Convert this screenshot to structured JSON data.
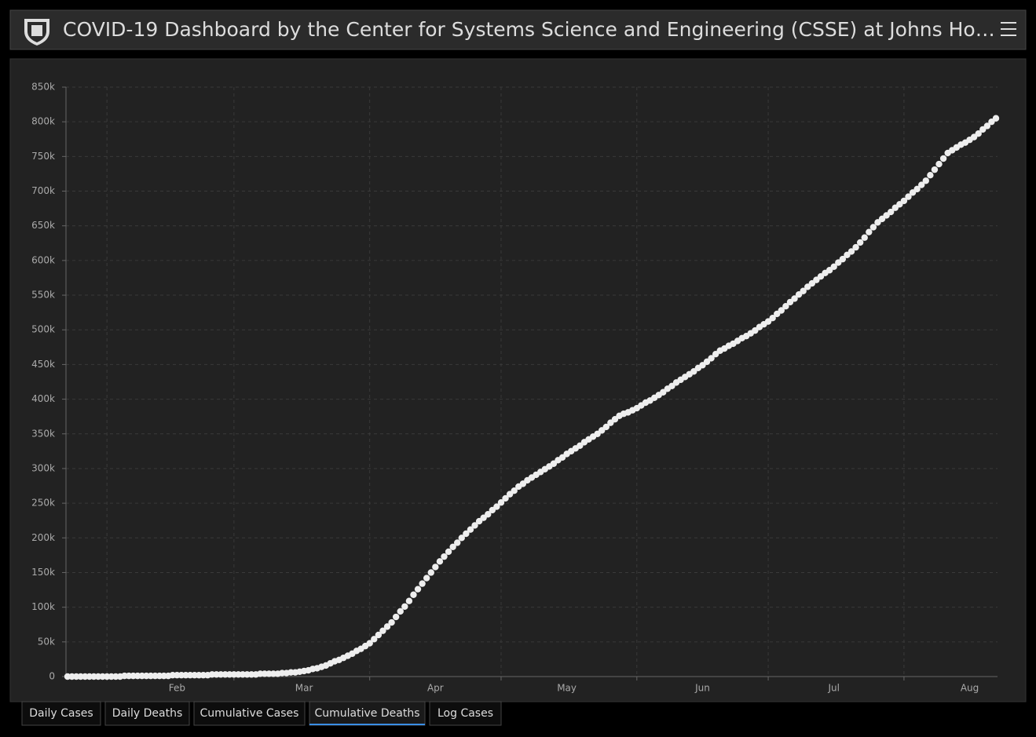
{
  "header": {
    "title": "COVID-19 Dashboard by the Center for Systems Science and Engineering (CSSE) at Johns Ho…"
  },
  "tabs": [
    "Daily Cases",
    "Daily Deaths",
    "Cumulative Cases",
    "Cumulative Deaths",
    "Log Cases"
  ],
  "chart_data": {
    "type": "scatter",
    "color": "#eeeeee",
    "grid": true,
    "ylim": [
      0,
      850000
    ],
    "yticks": [
      0,
      {
        "value": 50000,
        "label": "50k"
      },
      {
        "value": 100000,
        "label": "100k"
      },
      {
        "value": 150000,
        "label": "150k"
      },
      {
        "value": 200000,
        "label": "200k"
      },
      {
        "value": 250000,
        "label": "250k"
      },
      {
        "value": 300000,
        "label": "300k"
      },
      {
        "value": 350000,
        "label": "350k"
      },
      {
        "value": 400000,
        "label": "400k"
      },
      {
        "value": 450000,
        "label": "450k"
      },
      {
        "value": 500000,
        "label": "500k"
      },
      {
        "value": 550000,
        "label": "550k"
      },
      {
        "value": 600000,
        "label": "600k"
      },
      {
        "value": 650000,
        "label": "650k"
      },
      {
        "value": 700000,
        "label": "700k"
      },
      {
        "value": 750000,
        "label": "750k"
      },
      {
        "value": 800000,
        "label": "800k"
      },
      {
        "value": 850000,
        "label": "850k"
      }
    ],
    "categories": [
      null,
      null,
      null,
      null,
      null,
      null,
      null,
      null,
      null,
      null,
      null,
      null,
      null,
      null,
      null,
      null,
      null,
      null,
      null,
      null,
      null,
      null,
      null,
      null,
      null,
      "Feb",
      null,
      null,
      null,
      null,
      null,
      null,
      null,
      null,
      null,
      null,
      null,
      null,
      null,
      null,
      null,
      null,
      null,
      null,
      null,
      null,
      null,
      null,
      null,
      null,
      null,
      null,
      null,
      null,
      "Mar",
      null,
      null,
      null,
      null,
      null,
      null,
      null,
      null,
      null,
      null,
      null,
      null,
      null,
      null,
      null,
      null,
      null,
      null,
      null,
      null,
      null,
      null,
      null,
      null,
      null,
      null,
      null,
      null,
      null,
      "Apr",
      null,
      null,
      null,
      null,
      null,
      null,
      null,
      null,
      null,
      null,
      null,
      null,
      null,
      null,
      null,
      null,
      null,
      null,
      null,
      null,
      null,
      null,
      null,
      null,
      null,
      null,
      null,
      null,
      null,
      "May",
      null,
      null,
      null,
      null,
      null,
      null,
      null,
      null,
      null,
      null,
      null,
      null,
      null,
      null,
      null,
      null,
      null,
      null,
      null,
      null,
      null,
      null,
      null,
      null,
      null,
      null,
      null,
      null,
      null,
      null,
      "Jun",
      null,
      null,
      null,
      null,
      null,
      null,
      null,
      null,
      null,
      null,
      null,
      null,
      null,
      null,
      null,
      null,
      null,
      null,
      null,
      null,
      null,
      null,
      null,
      null,
      null,
      null,
      null,
      null,
      null,
      "Jul",
      null,
      null,
      null,
      null,
      null,
      null,
      null,
      null,
      null,
      null,
      null,
      null,
      null,
      null,
      null,
      null,
      null,
      null,
      null,
      null,
      null,
      null,
      null,
      null,
      null,
      null,
      null,
      null,
      null,
      null,
      "Aug",
      null,
      null,
      null,
      null,
      null,
      null
    ],
    "values": [
      0,
      0,
      0,
      0,
      0,
      0,
      0,
      0,
      0,
      0,
      0,
      0,
      0,
      1000,
      1000,
      1000,
      1000,
      1000,
      1000,
      1000,
      1000,
      1000,
      1000,
      1000,
      2000,
      2000,
      2000,
      2000,
      2000,
      2000,
      2000,
      2000,
      2000,
      3000,
      3000,
      3000,
      3000,
      3000,
      3000,
      3000,
      3000,
      3000,
      3000,
      3000,
      4000,
      4000,
      4000,
      4000,
      4000,
      5000,
      5000,
      6000,
      6000,
      7000,
      8000,
      9000,
      11000,
      12000,
      14000,
      16000,
      19000,
      22000,
      24000,
      27000,
      30000,
      33000,
      37000,
      40000,
      44000,
      48000,
      54000,
      60000,
      66000,
      72000,
      78000,
      86000,
      94000,
      101000,
      109000,
      118000,
      126000,
      134000,
      142000,
      150000,
      158000,
      166000,
      173000,
      180000,
      187000,
      193000,
      200000,
      206000,
      212000,
      218000,
      224000,
      229000,
      234000,
      240000,
      245000,
      251000,
      257000,
      263000,
      268000,
      274000,
      278000,
      283000,
      287000,
      291000,
      295000,
      299000,
      303000,
      307000,
      312000,
      316000,
      321000,
      325000,
      329000,
      333000,
      338000,
      342000,
      346000,
      350000,
      355000,
      360000,
      366000,
      371000,
      376000,
      379000,
      381000,
      384000,
      387000,
      391000,
      395000,
      398000,
      402000,
      406000,
      410000,
      415000,
      419000,
      424000,
      428000,
      432000,
      436000,
      440000,
      445000,
      449000,
      454000,
      459000,
      465000,
      470000,
      473000,
      477000,
      480000,
      484000,
      488000,
      491000,
      495000,
      499000,
      504000,
      508000,
      512000,
      517000,
      523000,
      528000,
      534000,
      540000,
      545000,
      551000,
      556000,
      562000,
      567000,
      572000,
      577000,
      582000,
      586000,
      591000,
      597000,
      602000,
      608000,
      613000,
      619000,
      626000,
      633000,
      641000,
      648000,
      655000,
      660000,
      665000,
      670000,
      676000,
      681000,
      686000,
      692000,
      698000,
      703000,
      709000,
      715000,
      723000,
      731000,
      739000,
      747000,
      755000,
      759000,
      763000,
      767000,
      770000,
      774000,
      778000,
      783000,
      789000,
      794000,
      800000,
      805000
    ]
  }
}
